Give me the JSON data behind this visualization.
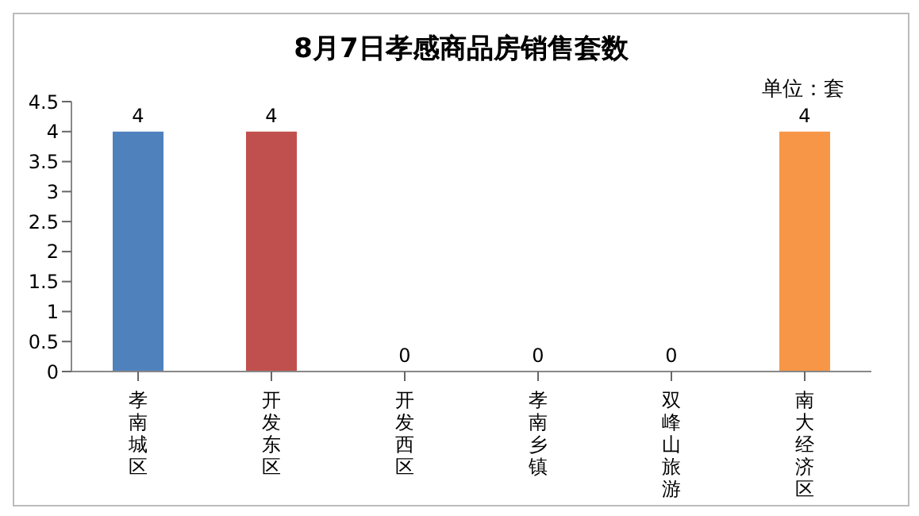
{
  "chart_data": {
    "type": "bar",
    "title": "8月7日孝感商品房销售套数",
    "annotations": [
      "单位：套"
    ],
    "categories": [
      "孝南城区",
      "开发东区",
      "开发西区",
      "孝南乡镇",
      "双峰山旅游区",
      "南大经济区"
    ],
    "values": [
      4,
      4,
      0,
      0,
      0,
      4
    ],
    "colors": [
      "#4f81bd",
      "#c0504d",
      "#9bbb59",
      "#8064a2",
      "#4bacc6",
      "#f79646"
    ],
    "ylim": [
      0,
      4.5
    ],
    "yticks": [
      0,
      0.5,
      1,
      1.5,
      2,
      2.5,
      3,
      3.5,
      4,
      4.5
    ],
    "data_labels": true,
    "grid": false,
    "legend": false
  }
}
